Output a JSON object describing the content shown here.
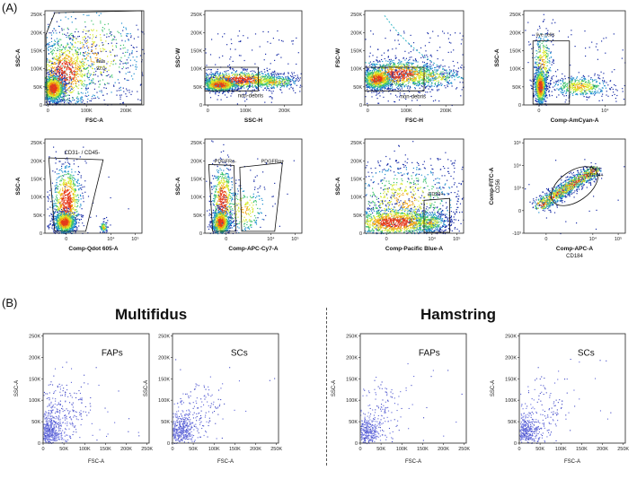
{
  "labels": {
    "panel_a": "(A)",
    "panel_b": "(B)"
  },
  "headings": {
    "left": "Multifidus",
    "right": "Hamstring"
  },
  "chart_data": [
    {
      "type": "scatter",
      "id": "a1",
      "xlabel": "FSC-A",
      "ylabel": "SSC-A",
      "xticks": [
        "0",
        "100K",
        "200K"
      ],
      "yticks": [
        "0",
        "50K",
        "100K",
        "150K",
        "200K",
        "250K"
      ],
      "gate_labels": [
        "cells",
        "92.0"
      ]
    },
    {
      "type": "scatter",
      "id": "a2",
      "xlabel": "SSC-H",
      "ylabel": "SSC-W",
      "xticks": [
        "0",
        "100K",
        "200K"
      ],
      "yticks": [
        "0",
        "50K",
        "100K",
        "150K",
        "200K",
        "250K"
      ],
      "gate_labels": [
        "non-debris"
      ]
    },
    {
      "type": "scatter",
      "id": "a3",
      "xlabel": "FSC-H",
      "ylabel": "FSC-W",
      "xticks": [
        "0",
        "100K",
        "200K"
      ],
      "yticks": [
        "0",
        "50K",
        "100K",
        "150K",
        "200K",
        "250K"
      ],
      "gate_labels": [
        "non-debris"
      ]
    },
    {
      "type": "scatter",
      "id": "a4",
      "xlabel": "Comp-AmCyan-A",
      "ylabel": "SSC-A",
      "xticks": [
        "0",
        "10⁴"
      ],
      "yticks": [
        "0",
        "50K",
        "100K",
        "150K",
        "200K",
        "250K"
      ],
      "gate_labels": [
        "live cells"
      ]
    },
    {
      "type": "scatter",
      "id": "a5",
      "xlabel": "Comp-Qdot 605-A",
      "ylabel": "SSC-A",
      "xticks": [
        "0",
        "10⁴",
        "10⁵"
      ],
      "yticks": [
        "0",
        "50K",
        "100K",
        "150K",
        "200K",
        "250K"
      ],
      "gate_labels": [
        "CD31- / CD45-"
      ]
    },
    {
      "type": "scatter",
      "id": "a6",
      "xlabel": "Comp-APC-Cy7-A",
      "ylabel": "SSC-A",
      "xticks": [
        "0",
        "10⁴",
        "10⁵"
      ],
      "yticks": [
        "0",
        "50K",
        "100K",
        "150K",
        "200K",
        "250K"
      ],
      "gate_labels": [
        "PDGFRα-",
        "PDGFRα+"
      ]
    },
    {
      "type": "scatter",
      "id": "a7",
      "xlabel": "Comp-Pacific Blue-A",
      "ylabel": "SSC-A",
      "xticks": [
        "0",
        "10⁴",
        "10⁵"
      ],
      "yticks": [
        "0",
        "50K",
        "100K",
        "150K",
        "200K",
        "250K"
      ],
      "gate_labels": [
        "CD29+"
      ]
    },
    {
      "type": "scatter",
      "id": "a8",
      "xlabel": "Comp-APC-A",
      "xlabel2": "CD184",
      "ylabel": "Comp-FITC-A",
      "ylabel2": "CD56",
      "xticks": [
        "0",
        "10⁴",
        "10⁵"
      ],
      "yticks": [
        "-10³",
        "0",
        "10³",
        "10⁴",
        "10⁵"
      ],
      "gate_labels": [
        "CD56+",
        "CD184+"
      ]
    },
    {
      "type": "scatter",
      "id": "b1",
      "xlabel": "FSC-A",
      "ylabel": "SSC-A",
      "annotation": "FAPs",
      "xticks": [
        "0",
        "50K",
        "100K",
        "150K",
        "200K",
        "250K"
      ],
      "yticks": [
        "0",
        "50K",
        "100K",
        "150K",
        "200K",
        "250K"
      ]
    },
    {
      "type": "scatter",
      "id": "b2",
      "xlabel": "FSC-A",
      "ylabel": "SSC-A",
      "annotation": "SCs",
      "xticks": [
        "0",
        "50K",
        "100K",
        "150K",
        "200K",
        "250K"
      ],
      "yticks": [
        "0",
        "50K",
        "100K",
        "150K",
        "200K",
        "250K"
      ]
    },
    {
      "type": "scatter",
      "id": "b3",
      "xlabel": "FSC-A",
      "ylabel": "SSC-A",
      "annotation": "FAPs",
      "xticks": [
        "0",
        "50K",
        "100K",
        "150K",
        "200K",
        "250K"
      ],
      "yticks": [
        "0",
        "50K",
        "100K",
        "150K",
        "200K",
        "250K"
      ]
    },
    {
      "type": "scatter",
      "id": "b4",
      "xlabel": "FSC-A",
      "ylabel": "SSC-A",
      "annotation": "SCs",
      "xticks": [
        "0",
        "50K",
        "100K",
        "150K",
        "200K",
        "250K"
      ],
      "yticks": [
        "0",
        "50K",
        "100K",
        "150K",
        "200K",
        "250K"
      ]
    }
  ]
}
